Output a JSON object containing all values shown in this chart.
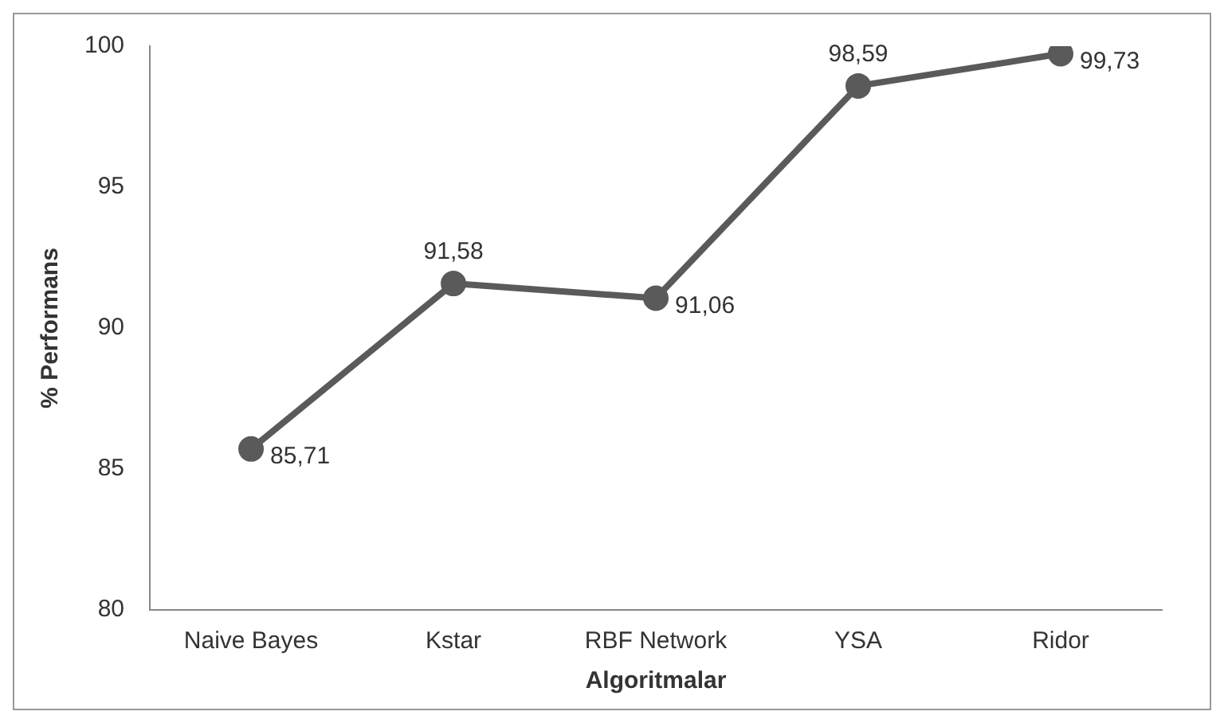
{
  "chart_data": {
    "type": "line",
    "xlabel": "Algoritmalar",
    "ylabel": "% Performans",
    "categories": [
      "Naive Bayes",
      "Kstar",
      "RBF Network",
      "YSA",
      "Ridor"
    ],
    "series": [
      {
        "color": "#5a5a5a",
        "values": [
          85.71,
          91.58,
          91.06,
          98.59,
          99.73
        ],
        "value_labels": [
          "85,71",
          "91,58",
          "91,06",
          "98,59",
          "99,73"
        ]
      }
    ],
    "ylim": [
      80,
      100
    ],
    "yticks": [
      80,
      85,
      90,
      95,
      100
    ],
    "grid": false,
    "legend": false,
    "marker": "circle",
    "line_style": "solid"
  }
}
